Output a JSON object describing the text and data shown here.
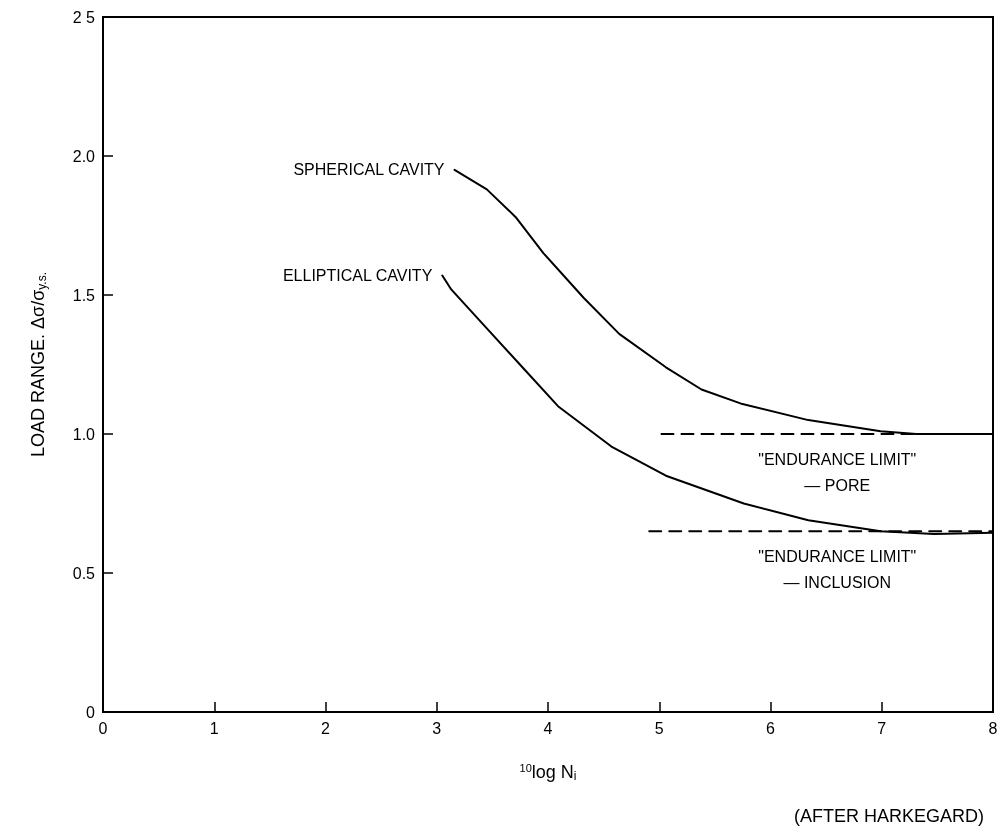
{
  "chart_data": {
    "type": "line",
    "xlabel": "$^{10}$log N$_{i}$",
    "ylabel": "LOAD RANGE. Δσ/σ$_{y.s.}$",
    "xlim": [
      0,
      8
    ],
    "xticks": [
      0,
      1,
      2,
      3,
      4,
      5,
      6,
      7,
      8
    ],
    "ylim": [
      0,
      2.5
    ],
    "yticks": [
      0,
      0.5,
      {
        "value": 1,
        "label": "1.0"
      },
      1.5,
      {
        "value": 2,
        "label": "2.0"
      },
      {
        "value": 2.5,
        "label": "2 5"
      }
    ],
    "grid": false,
    "marker": "none",
    "legend": false,
    "series": [
      {
        "name": "SPHERICAL CAVITY",
        "color": "#000000",
        "line_style": "solid",
        "x": [
          3.16,
          3.45,
          3.71,
          3.96,
          4.32,
          4.64,
          5.06,
          5.38,
          5.73,
          6.34,
          6.99,
          7.31,
          8
        ],
        "values": [
          1.95,
          1.88,
          1.78,
          1.65,
          1.49,
          1.36,
          1.24,
          1.16,
          1.11,
          1.05,
          1.01,
          1.0,
          1.0
        ]
      },
      {
        "name": "ELLIPTICAL CAVITY",
        "color": "#000000",
        "line_style": "solid",
        "x": [
          3.05,
          3.13,
          3.45,
          3.77,
          4.09,
          4.57,
          5.06,
          5.76,
          6.34,
          6.99,
          7.47,
          8
        ],
        "values": [
          1.57,
          1.52,
          1.38,
          1.24,
          1.1,
          0.955,
          0.85,
          0.75,
          0.69,
          0.65,
          0.64,
          0.645
        ]
      },
      {
        "color": "#000000",
        "line_style": "dashed",
        "x": [
          5.02,
          8
        ],
        "values": [
          1.0,
          1.0
        ]
      },
      {
        "color": "#000000",
        "line_style": "dashed",
        "x": [
          4.91,
          8
        ],
        "values": [
          0.65,
          0.65
        ]
      }
    ],
    "annotations": [
      {
        "text": "\"ENDURANCE LIMIT\"\n— PORE",
        "x": 6.6,
        "y": 1.0
      },
      {
        "text": "\"ENDURANCE LIMIT\"\n— INCLUSION",
        "x": 6.6,
        "y": 0.65
      },
      "(AFTER HARKEGARD)"
    ]
  }
}
